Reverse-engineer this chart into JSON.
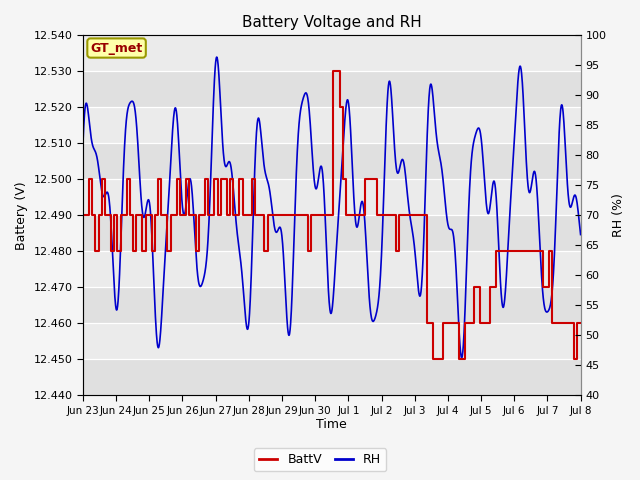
{
  "title": "Battery Voltage and RH",
  "xlabel": "Time",
  "ylabel_left": "Battery (V)",
  "ylabel_right": "RH (%)",
  "label_text": "GT_met",
  "legend_entries": [
    "BattV",
    "RH"
  ],
  "batt_color": "#cc0000",
  "rh_color": "#0000cc",
  "plot_bg_light": "#e8e8e8",
  "plot_bg_dark": "#d0d0d0",
  "fig_bg": "#f5f5f5",
  "ylim_left": [
    12.44,
    12.54
  ],
  "ylim_right": [
    40,
    100
  ],
  "yticks_left": [
    12.44,
    12.45,
    12.46,
    12.47,
    12.48,
    12.49,
    12.5,
    12.51,
    12.52,
    12.53,
    12.54
  ],
  "yticks_right": [
    40,
    45,
    50,
    55,
    60,
    65,
    70,
    75,
    80,
    85,
    90,
    95,
    100
  ],
  "xtick_labels": [
    "Jun 23",
    "Jun 24",
    "Jun 25",
    "Jun 26",
    "Jun 27",
    "Jun 28",
    "Jun 29",
    "Jun 30",
    "Jul 1",
    "Jul 2",
    "Jul 3",
    "Jul 4",
    "Jul 5",
    "Jul 6",
    "Jul 7",
    "Jul 8"
  ],
  "batt_data": [
    12.49,
    12.49,
    12.5,
    12.49,
    12.48,
    12.49,
    12.5,
    12.49,
    12.49,
    12.48,
    12.49,
    12.48,
    12.49,
    12.49,
    12.5,
    12.49,
    12.48,
    12.49,
    12.49,
    12.48,
    12.49,
    12.49,
    12.48,
    12.49,
    12.5,
    12.49,
    12.49,
    12.48,
    12.49,
    12.49,
    12.5,
    12.49,
    12.49,
    12.5,
    12.49,
    12.49,
    12.48,
    12.49,
    12.49,
    12.5,
    12.49,
    12.49,
    12.5,
    12.49,
    12.5,
    12.5,
    12.49,
    12.5,
    12.49,
    12.49,
    12.5,
    12.49,
    12.49,
    12.49,
    12.5,
    12.49,
    12.49,
    12.49,
    12.48,
    12.49,
    12.49,
    12.49,
    12.49,
    12.49,
    12.49,
    12.49,
    12.49,
    12.49,
    12.49,
    12.49,
    12.49,
    12.49,
    12.48,
    12.49,
    12.49,
    12.49,
    12.49,
    12.49,
    12.49,
    12.49,
    12.53,
    12.53,
    12.52,
    12.5,
    12.49,
    12.49,
    12.49,
    12.49,
    12.49,
    12.49,
    12.5,
    12.5,
    12.5,
    12.5,
    12.49,
    12.49,
    12.49,
    12.49,
    12.49,
    12.49,
    12.48,
    12.49,
    12.49,
    12.49,
    12.49,
    12.49,
    12.49,
    12.49,
    12.49,
    12.49,
    12.46,
    12.46,
    12.45,
    12.45,
    12.45,
    12.46,
    12.46,
    12.46,
    12.46,
    12.46,
    12.45,
    12.45,
    12.46,
    12.46,
    12.46,
    12.47,
    12.47,
    12.46,
    12.46,
    12.46,
    12.47,
    12.47,
    12.48,
    12.48,
    12.48,
    12.48,
    12.48,
    12.48,
    12.48,
    12.48,
    12.48,
    12.48,
    12.48,
    12.48,
    12.48,
    12.48,
    12.48,
    12.47,
    12.47,
    12.48,
    12.46,
    12.46,
    12.46,
    12.46,
    12.46,
    12.46,
    12.46,
    12.45,
    12.46,
    12.46
  ]
}
